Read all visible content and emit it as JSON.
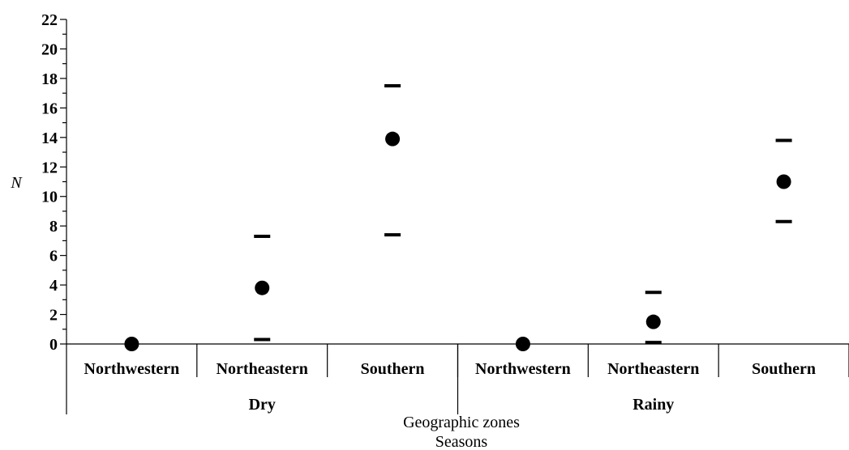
{
  "chart_data": {
    "type": "scatter",
    "ylabel": "N",
    "xlabel": "Geographic zones",
    "xlabel2": "Seasons",
    "ylim": [
      0,
      22
    ],
    "yticks": [
      0,
      2,
      4,
      6,
      8,
      10,
      12,
      14,
      16,
      18,
      20,
      22
    ],
    "ytick_labels": [
      "0",
      "2",
      "4",
      "6",
      "8",
      "10",
      "12",
      "14",
      "16",
      "18",
      "20",
      "22"
    ],
    "categories": [
      "Northwestern",
      "Northeastern",
      "Southern",
      "Northwestern",
      "Northeastern",
      "Southern"
    ],
    "groups": [
      {
        "label": "Dry",
        "span": [
          0,
          2
        ]
      },
      {
        "label": "Rainy",
        "span": [
          3,
          5
        ]
      }
    ],
    "series": [
      {
        "values": [
          0,
          3.8,
          13.9,
          0,
          1.5,
          11.0
        ]
      }
    ],
    "error_upper": [
      null,
      7.3,
      17.5,
      null,
      3.5,
      13.8
    ],
    "error_lower": [
      null,
      0.3,
      7.4,
      null,
      0.1,
      8.3
    ],
    "grid": false,
    "marker_color": "#000000"
  }
}
